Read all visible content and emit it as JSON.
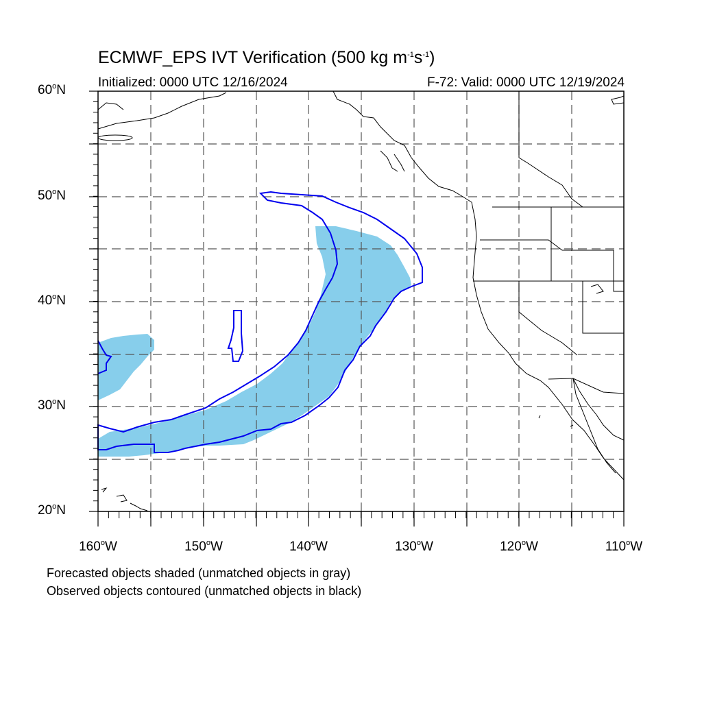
{
  "title": {
    "prefix": "ECMWF_EPS IVT Verification (500 kg m",
    "exp1": "-1",
    "mid": "s",
    "exp2": "-1",
    "suffix": ")"
  },
  "initialized": "Initialized: 0000 UTC 12/16/2024",
  "valid": "F-72: Valid: 0000 UTC 12/19/2024",
  "lat_labels": [
    "60",
    "50",
    "40",
    "30",
    "20"
  ],
  "lon_labels": [
    "160",
    "150",
    "140",
    "130",
    "120",
    "110"
  ],
  "lat_suffix": "N",
  "lon_suffix": "W",
  "degree_symbol": "o",
  "legend": {
    "forecast": "Forecasted objects shaded (unmatched objects in gray)",
    "observed": "Observed objects contoured (unmatched objects in black)"
  },
  "colors": {
    "forecast_fill": "#87ceeb",
    "observed_contour": "#0000ee",
    "coast": "#000000",
    "grid": "#555555"
  }
}
